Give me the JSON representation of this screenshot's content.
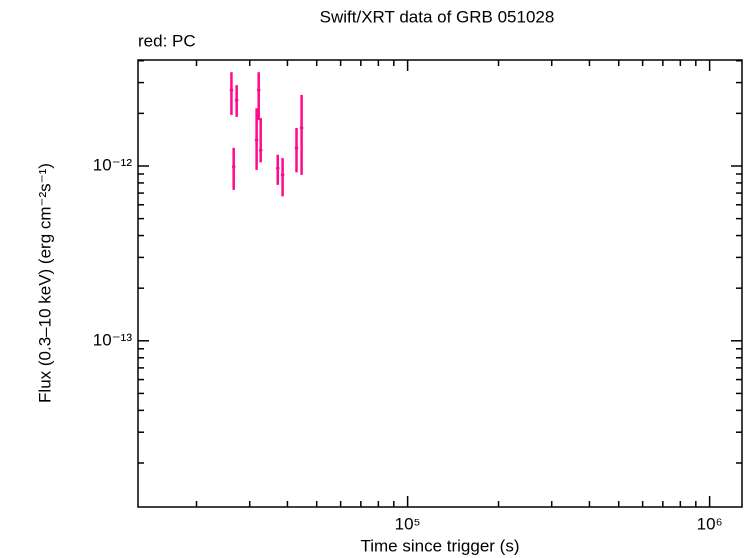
{
  "chart_data": {
    "type": "scatter",
    "title": "Swift/XRT data of GRB 051028",
    "annotation": "red: PC",
    "x_label": "Time since trigger (s)",
    "y_label": "Flux (0.3–10 keV) (erg cm⁻²s⁻¹)",
    "log_x": true,
    "log_y": true,
    "color": "#ff0a8c",
    "xlim": [
      12800,
      1280000
    ],
    "ylim": [
      1.12e-14,
      4.04e-12
    ],
    "xticks": [
      {
        "value": 100000,
        "label": "10⁵"
      },
      {
        "value": 1000000,
        "label": "10⁶"
      }
    ],
    "yticks": [
      {
        "value": 1e-13,
        "label": "10⁻¹³"
      },
      {
        "value": 1e-12,
        "label": "10⁻¹²"
      }
    ],
    "xminor": [
      20000,
      30000,
      40000,
      50000,
      60000,
      70000,
      80000,
      90000,
      200000,
      300000,
      400000,
      500000,
      600000,
      700000,
      800000,
      900000
    ],
    "yminor": [
      2e-14,
      3e-14,
      4e-14,
      5e-14,
      6e-14,
      7e-14,
      8e-14,
      9e-14,
      2e-13,
      3e-13,
      4e-13,
      5e-13,
      6e-13,
      7e-13,
      8e-13,
      9e-13,
      2e-12,
      3e-12,
      4e-12
    ],
    "x": [
      26100,
      26550,
      27160,
      31620,
      32130,
      32620,
      37150,
      38550,
      42860,
      44560
    ],
    "values": [
      2.72e-12,
      9.9e-13,
      2.38e-12,
      1.41e-12,
      2.72e-12,
      1.23e-12,
      9.7e-13,
      8.9e-13,
      1.27e-12,
      1.65e-12
    ],
    "lower": [
      1.96e-12,
      7.3e-13,
      1.91e-12,
      9.5e-13,
      1.83e-12,
      1.05e-12,
      7.8e-13,
      6.7e-13,
      9.2e-13,
      8.9e-13
    ],
    "upper": [
      3.44e-12,
      1.27e-12,
      2.9e-12,
      2.14e-12,
      3.44e-12,
      1.88e-12,
      1.16e-12,
      1.11e-12,
      1.65e-12,
      2.55e-12
    ]
  }
}
